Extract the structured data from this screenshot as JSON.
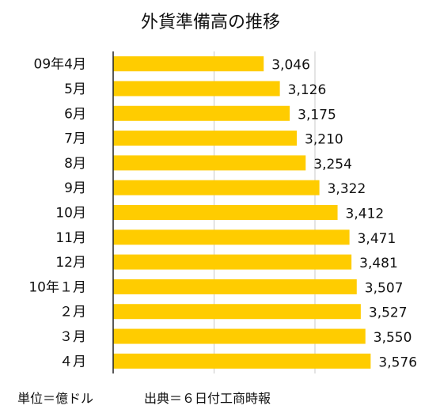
{
  "chart_data": {
    "type": "bar",
    "orientation": "horizontal",
    "title": "外貨準備高の推移",
    "categories": [
      "09年4月",
      "5月",
      "6月",
      "7月",
      "8月",
      "9月",
      "10月",
      "11月",
      "12月",
      "10年１月",
      "２月",
      "３月",
      "４月"
    ],
    "values": [
      3046,
      3126,
      3175,
      3210,
      3254,
      3322,
      3412,
      3471,
      3481,
      3507,
      3527,
      3550,
      3576
    ],
    "value_labels": [
      "3,046",
      "3,126",
      "3,175",
      "3,210",
      "3,254",
      "3,322",
      "3,412",
      "3,471",
      "3,481",
      "3,507",
      "3,527",
      "3,550",
      "3,576"
    ],
    "xlim": [
      2300,
      3700
    ],
    "grid": true,
    "bar_color": "#FFCC00",
    "grid_color": "#C8C8C8"
  },
  "footer": {
    "unit": "単位＝億ドル",
    "source": "出典＝６日付工商時報"
  }
}
